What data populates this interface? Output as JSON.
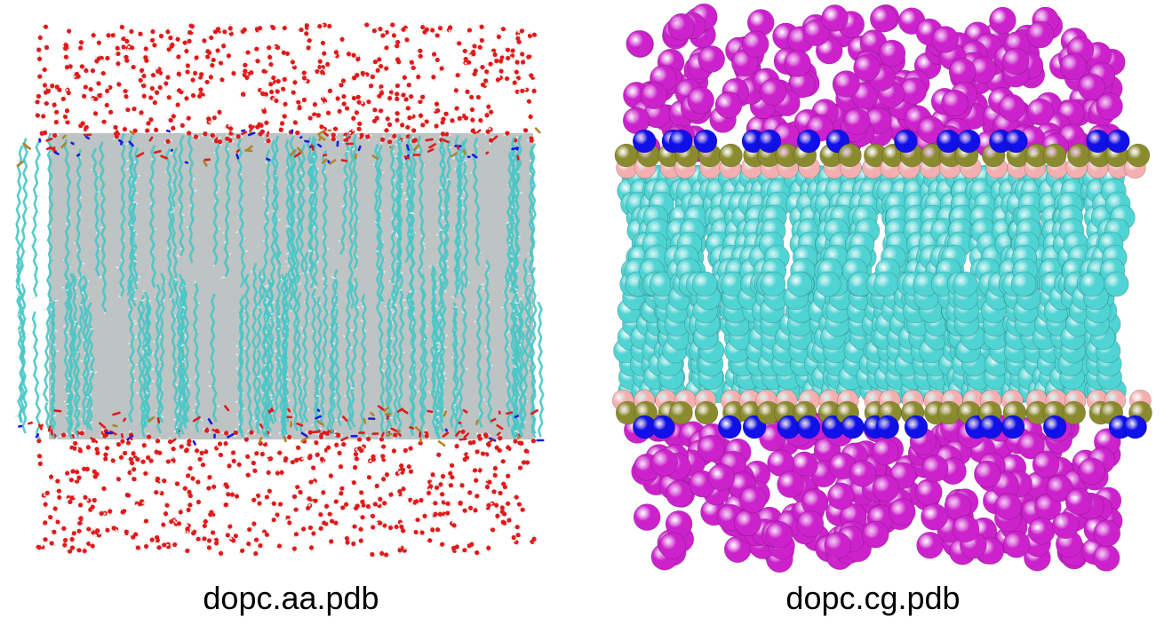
{
  "panels": [
    {
      "caption": "dopc.aa.pdb",
      "representation": "all-atom licorice",
      "colors": {
        "water_oxygen": "#e11a1a",
        "hydrogen": "#e6e6e6",
        "carbon": "#47c7c7",
        "nitrogen": "#1a1ae0",
        "phosphorus": "#b0852a",
        "shadow": "#6f7a7a"
      }
    },
    {
      "caption": "dopc.cg.pdb",
      "representation": "coarse-grained spheres",
      "colors": {
        "water": "#cc22cc",
        "choline": "#1010e8",
        "phosphate": "#8a8a2e",
        "glycerol": "#f4b0b0",
        "tail": "#4fd3d3"
      }
    }
  ]
}
